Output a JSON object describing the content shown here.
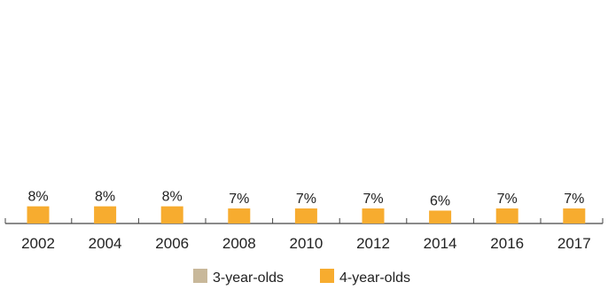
{
  "chart_data": {
    "type": "bar",
    "categories": [
      "2002",
      "2004",
      "2006",
      "2008",
      "2010",
      "2012",
      "2014",
      "2016",
      "2017"
    ],
    "series": [
      {
        "name": "3-year-olds",
        "color": "#c8b89a",
        "values": [
          null,
          null,
          null,
          null,
          null,
          null,
          null,
          null,
          null
        ]
      },
      {
        "name": "4-year-olds",
        "color": "#f7ac2f",
        "values": [
          8,
          8,
          8,
          7,
          7,
          7,
          6,
          7,
          7
        ],
        "data_labels": [
          "8%",
          "8%",
          "8%",
          "7%",
          "7%",
          "7%",
          "6%",
          "7%",
          "7%"
        ]
      }
    ],
    "ylim": [
      0,
      100
    ],
    "grid": false,
    "legend_position": "bottom-center",
    "axis_color": "#444444"
  }
}
